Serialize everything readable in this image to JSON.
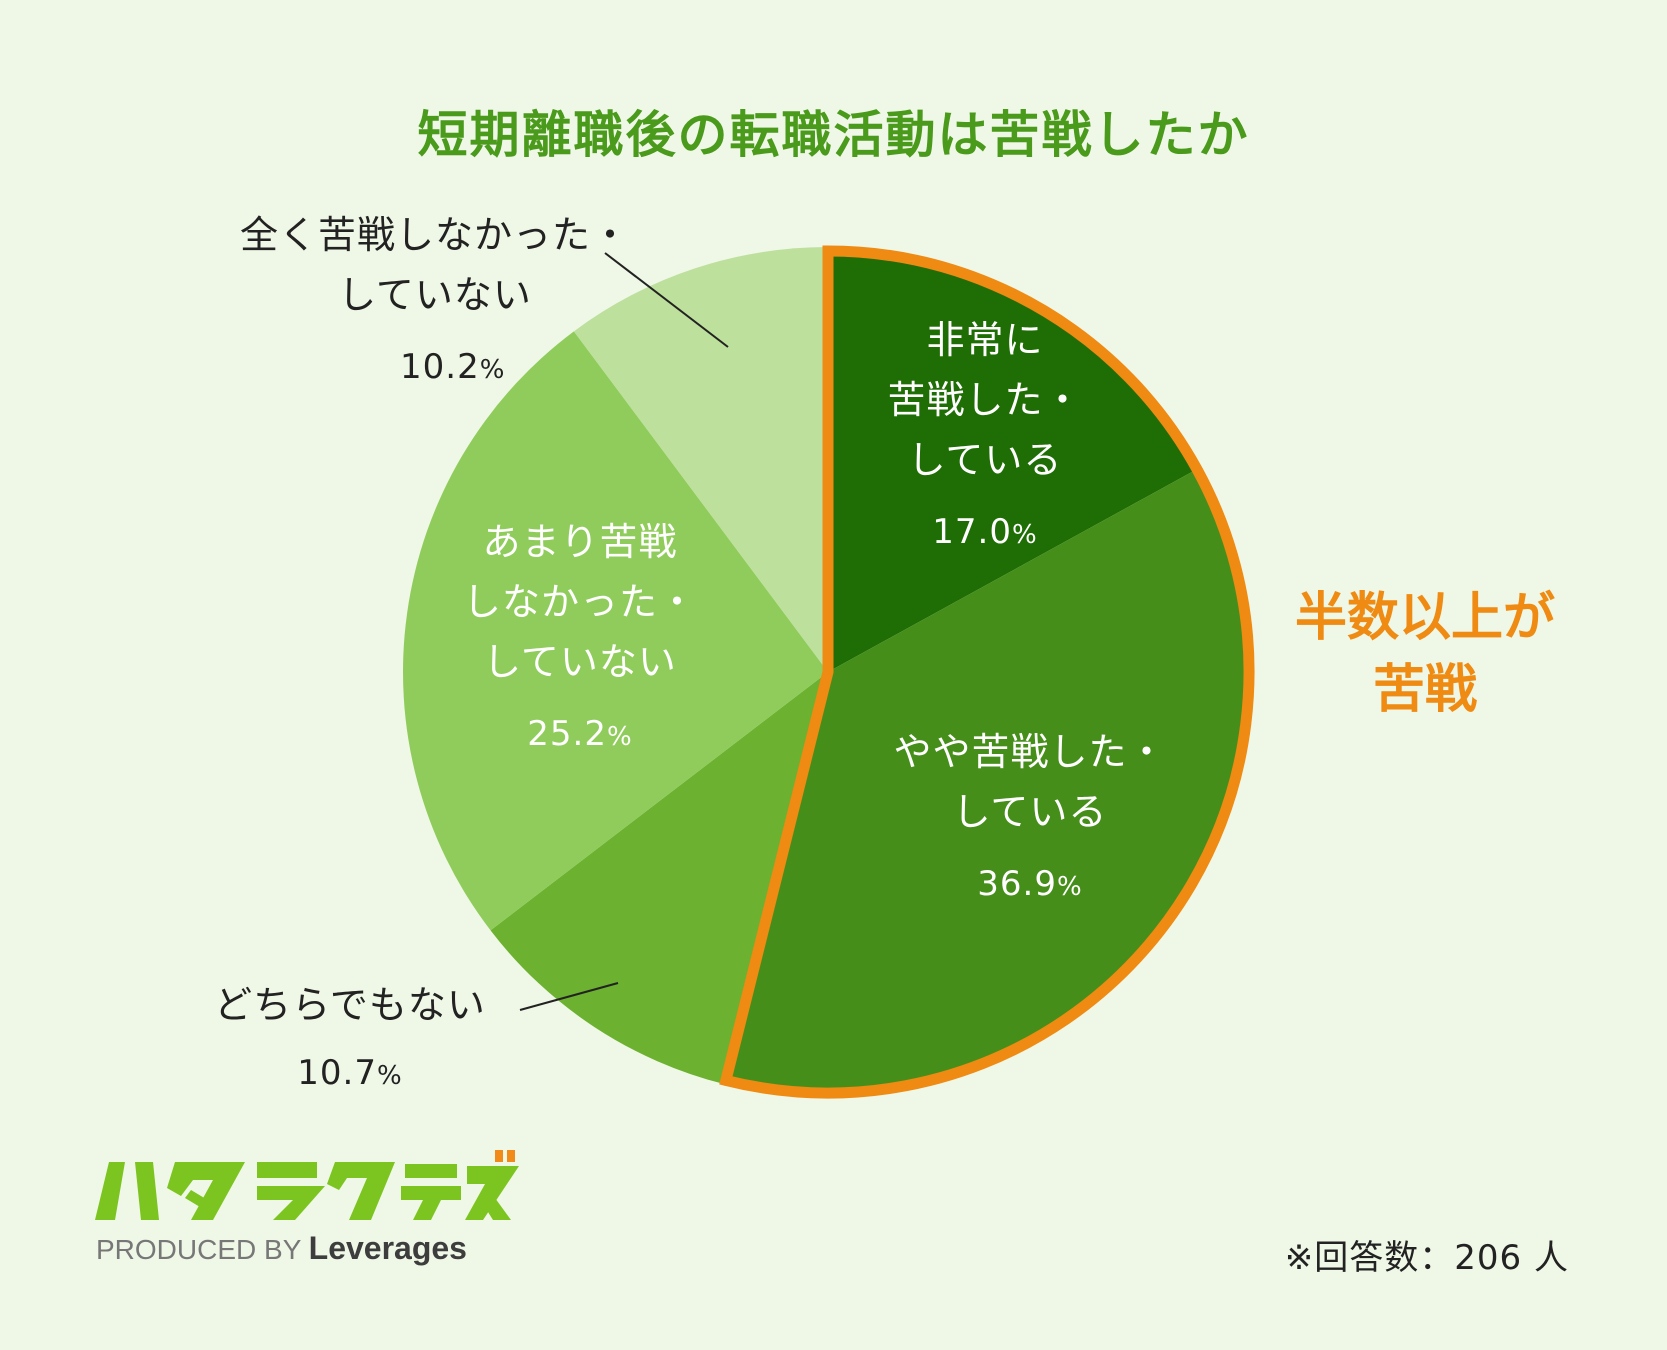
{
  "chart_data": {
    "type": "pie",
    "title": "短期離職後の転職活動は苦戦したか",
    "slices": [
      {
        "label": "非常に苦戦した・している",
        "lines": [
          "非常に",
          "苦戦した・",
          "している"
        ],
        "value": 17.0,
        "color": "#1f6d05"
      },
      {
        "label": "やや苦戦した・している",
        "lines": [
          "やや苦戦した・",
          "している"
        ],
        "value": 36.9,
        "color": "#468e1a"
      },
      {
        "label": "どちらでもない",
        "lines": [
          "どちらでもない"
        ],
        "value": 10.7,
        "color": "#6cb12f"
      },
      {
        "label": "あまり苦戦しなかった・していない",
        "lines": [
          "あまり苦戦",
          "しなかった・",
          "していない"
        ],
        "value": 25.2,
        "color": "#90cc5b"
      },
      {
        "label": "全く苦戦しなかった・していない",
        "lines": [
          "全く苦戦しなかった・",
          "していない"
        ],
        "value": 10.2,
        "color": "#bde09c"
      }
    ],
    "highlight": {
      "slices": [
        0,
        1
      ],
      "color": "#ef8a12"
    },
    "start_angle": "12 o'clock",
    "direction": "clockwise",
    "unit": "%"
  },
  "callout": {
    "line1": "半数以上が",
    "line2": "苦戦"
  },
  "logo": {
    "mark": "ハタラクティブ",
    "produced_by": "PRODUCED BY",
    "brand": "Leverages"
  },
  "note": "※回答数：206 人"
}
